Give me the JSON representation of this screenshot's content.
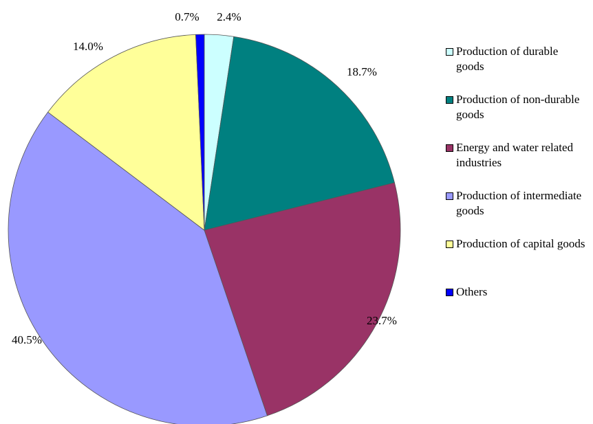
{
  "chart_data": {
    "type": "pie",
    "title": "",
    "slices": [
      {
        "label": "Production of durable goods",
        "value": 2.4,
        "value_label": "2.4%",
        "color": "#CCFFFF"
      },
      {
        "label": "Production of non-durable goods",
        "value": 18.7,
        "value_label": "18.7%",
        "color": "#008080"
      },
      {
        "label": "Energy and water related industries",
        "value": 23.7,
        "value_label": "23.7%",
        "color": "#993366"
      },
      {
        "label": "Production of intermediate goods",
        "value": 40.5,
        "value_label": "40.5%",
        "color": "#9999FF"
      },
      {
        "label": "Production of capital goods",
        "value": 14.0,
        "value_label": "14.0%",
        "color": "#FFFF99"
      },
      {
        "label": "Others",
        "value": 0.7,
        "value_label": "0.7%",
        "color": "#0000FF"
      }
    ],
    "legend_position": "right",
    "start_angle": "12 o'clock",
    "direction": "clockwise"
  },
  "legend": {
    "items": [
      {
        "label": "Production of durable goods",
        "color": "#CCFFFF"
      },
      {
        "label": "Production of non-durable goods",
        "color": "#008080"
      },
      {
        "label": "Energy and water related industries",
        "color": "#993366"
      },
      {
        "label": "Production of intermediate goods",
        "color": "#9999FF"
      },
      {
        "label": "Production of capital goods",
        "color": "#FFFF99"
      },
      {
        "label": "Others",
        "color": "#0000FF"
      }
    ]
  }
}
